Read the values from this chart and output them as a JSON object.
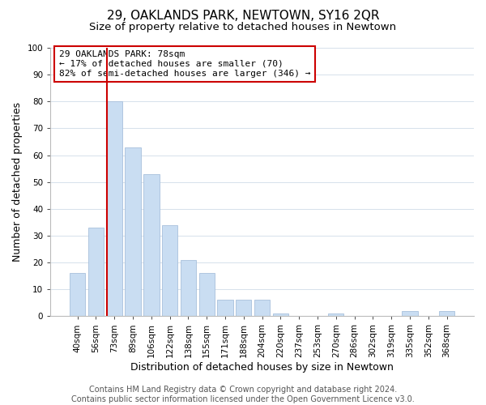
{
  "title": "29, OAKLANDS PARK, NEWTOWN, SY16 2QR",
  "subtitle": "Size of property relative to detached houses in Newtown",
  "xlabel": "Distribution of detached houses by size in Newtown",
  "ylabel": "Number of detached properties",
  "bar_labels": [
    "40sqm",
    "56sqm",
    "73sqm",
    "89sqm",
    "106sqm",
    "122sqm",
    "138sqm",
    "155sqm",
    "171sqm",
    "188sqm",
    "204sqm",
    "220sqm",
    "237sqm",
    "253sqm",
    "270sqm",
    "286sqm",
    "302sqm",
    "319sqm",
    "335sqm",
    "352sqm",
    "368sqm"
  ],
  "bar_heights": [
    16,
    33,
    80,
    63,
    53,
    34,
    21,
    16,
    6,
    6,
    6,
    1,
    0,
    0,
    1,
    0,
    0,
    0,
    2,
    0,
    2
  ],
  "bar_color": "#c9ddf2",
  "bar_edge_color": "#a8c0dc",
  "vline_idx": 2,
  "vline_color": "#cc0000",
  "ylim": [
    0,
    100
  ],
  "yticks": [
    0,
    10,
    20,
    30,
    40,
    50,
    60,
    70,
    80,
    90,
    100
  ],
  "annotation_title": "29 OAKLANDS PARK: 78sqm",
  "annotation_line1": "← 17% of detached houses are smaller (70)",
  "annotation_line2": "82% of semi-detached houses are larger (346) →",
  "annotation_box_color": "#ffffff",
  "annotation_box_edge": "#cc0000",
  "footer_line1": "Contains HM Land Registry data © Crown copyright and database right 2024.",
  "footer_line2": "Contains public sector information licensed under the Open Government Licence v3.0.",
  "title_fontsize": 11,
  "subtitle_fontsize": 9.5,
  "axis_label_fontsize": 9,
  "tick_fontsize": 7.5,
  "annotation_fontsize": 8,
  "footer_fontsize": 7,
  "ylabel_fontsize": 9
}
